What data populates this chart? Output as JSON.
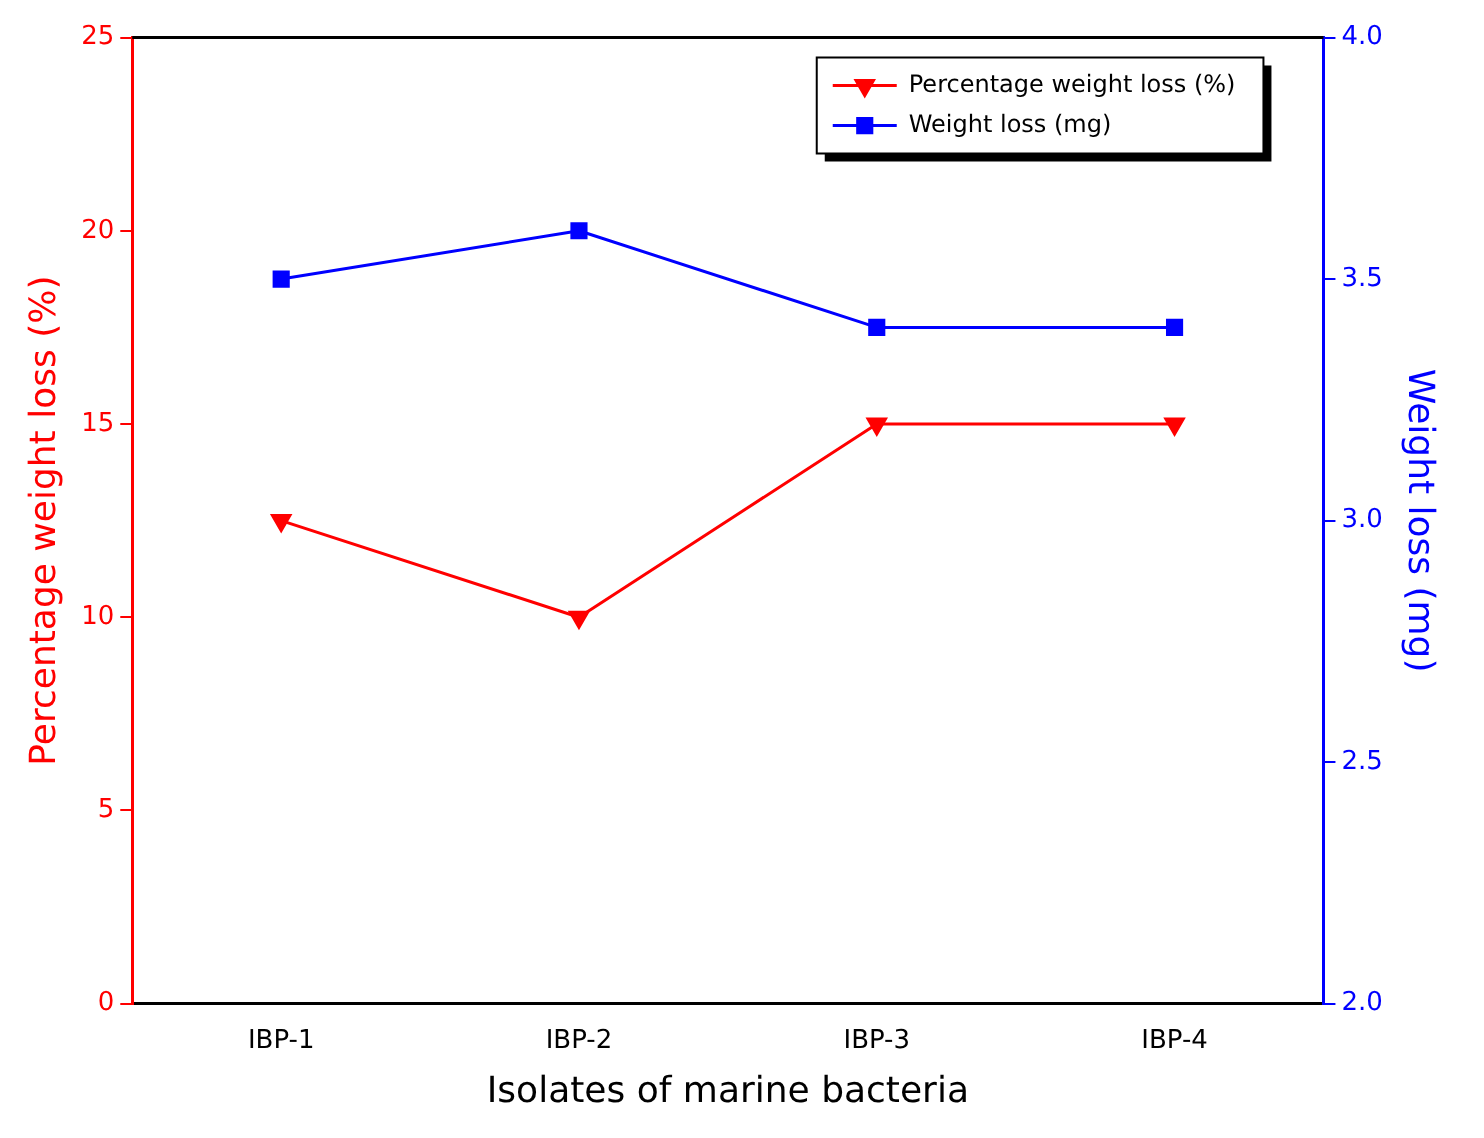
{
  "chart_data": {
    "type": "line",
    "xlabel": "Isolates of marine bacteria",
    "ylabel": "Percentage weight loss (%)",
    "y2label": "Weight loss (mg)",
    "categories": [
      "IBP-1",
      "IBP-2",
      "IBP-3",
      "IBP-4"
    ],
    "series": [
      {
        "name": "Percentage weight loss (%)",
        "color": "#ff0000",
        "marker": "triangle",
        "values": [
          12.5,
          10,
          15,
          15
        ]
      },
      {
        "name": "Weight loss (mg)",
        "color": "#0000ff",
        "marker": "square",
        "axis": "y2",
        "values": [
          3.5,
          3.6,
          3.4,
          3.4
        ]
      }
    ],
    "ylim": [
      0,
      25
    ],
    "yticks": [
      0,
      5,
      10,
      15,
      20,
      25
    ],
    "y2lim": [
      2,
      4
    ],
    "y2ticks": [
      {
        "value": 2,
        "label": "2.0"
      },
      {
        "value": 2.5,
        "label": "2.5"
      },
      {
        "value": 3,
        "label": "3.0"
      },
      {
        "value": 3.5,
        "label": "3.5"
      },
      {
        "value": 4,
        "label": "4.0"
      }
    ],
    "grid": false,
    "legend": "top right",
    "line_style": "solid"
  }
}
